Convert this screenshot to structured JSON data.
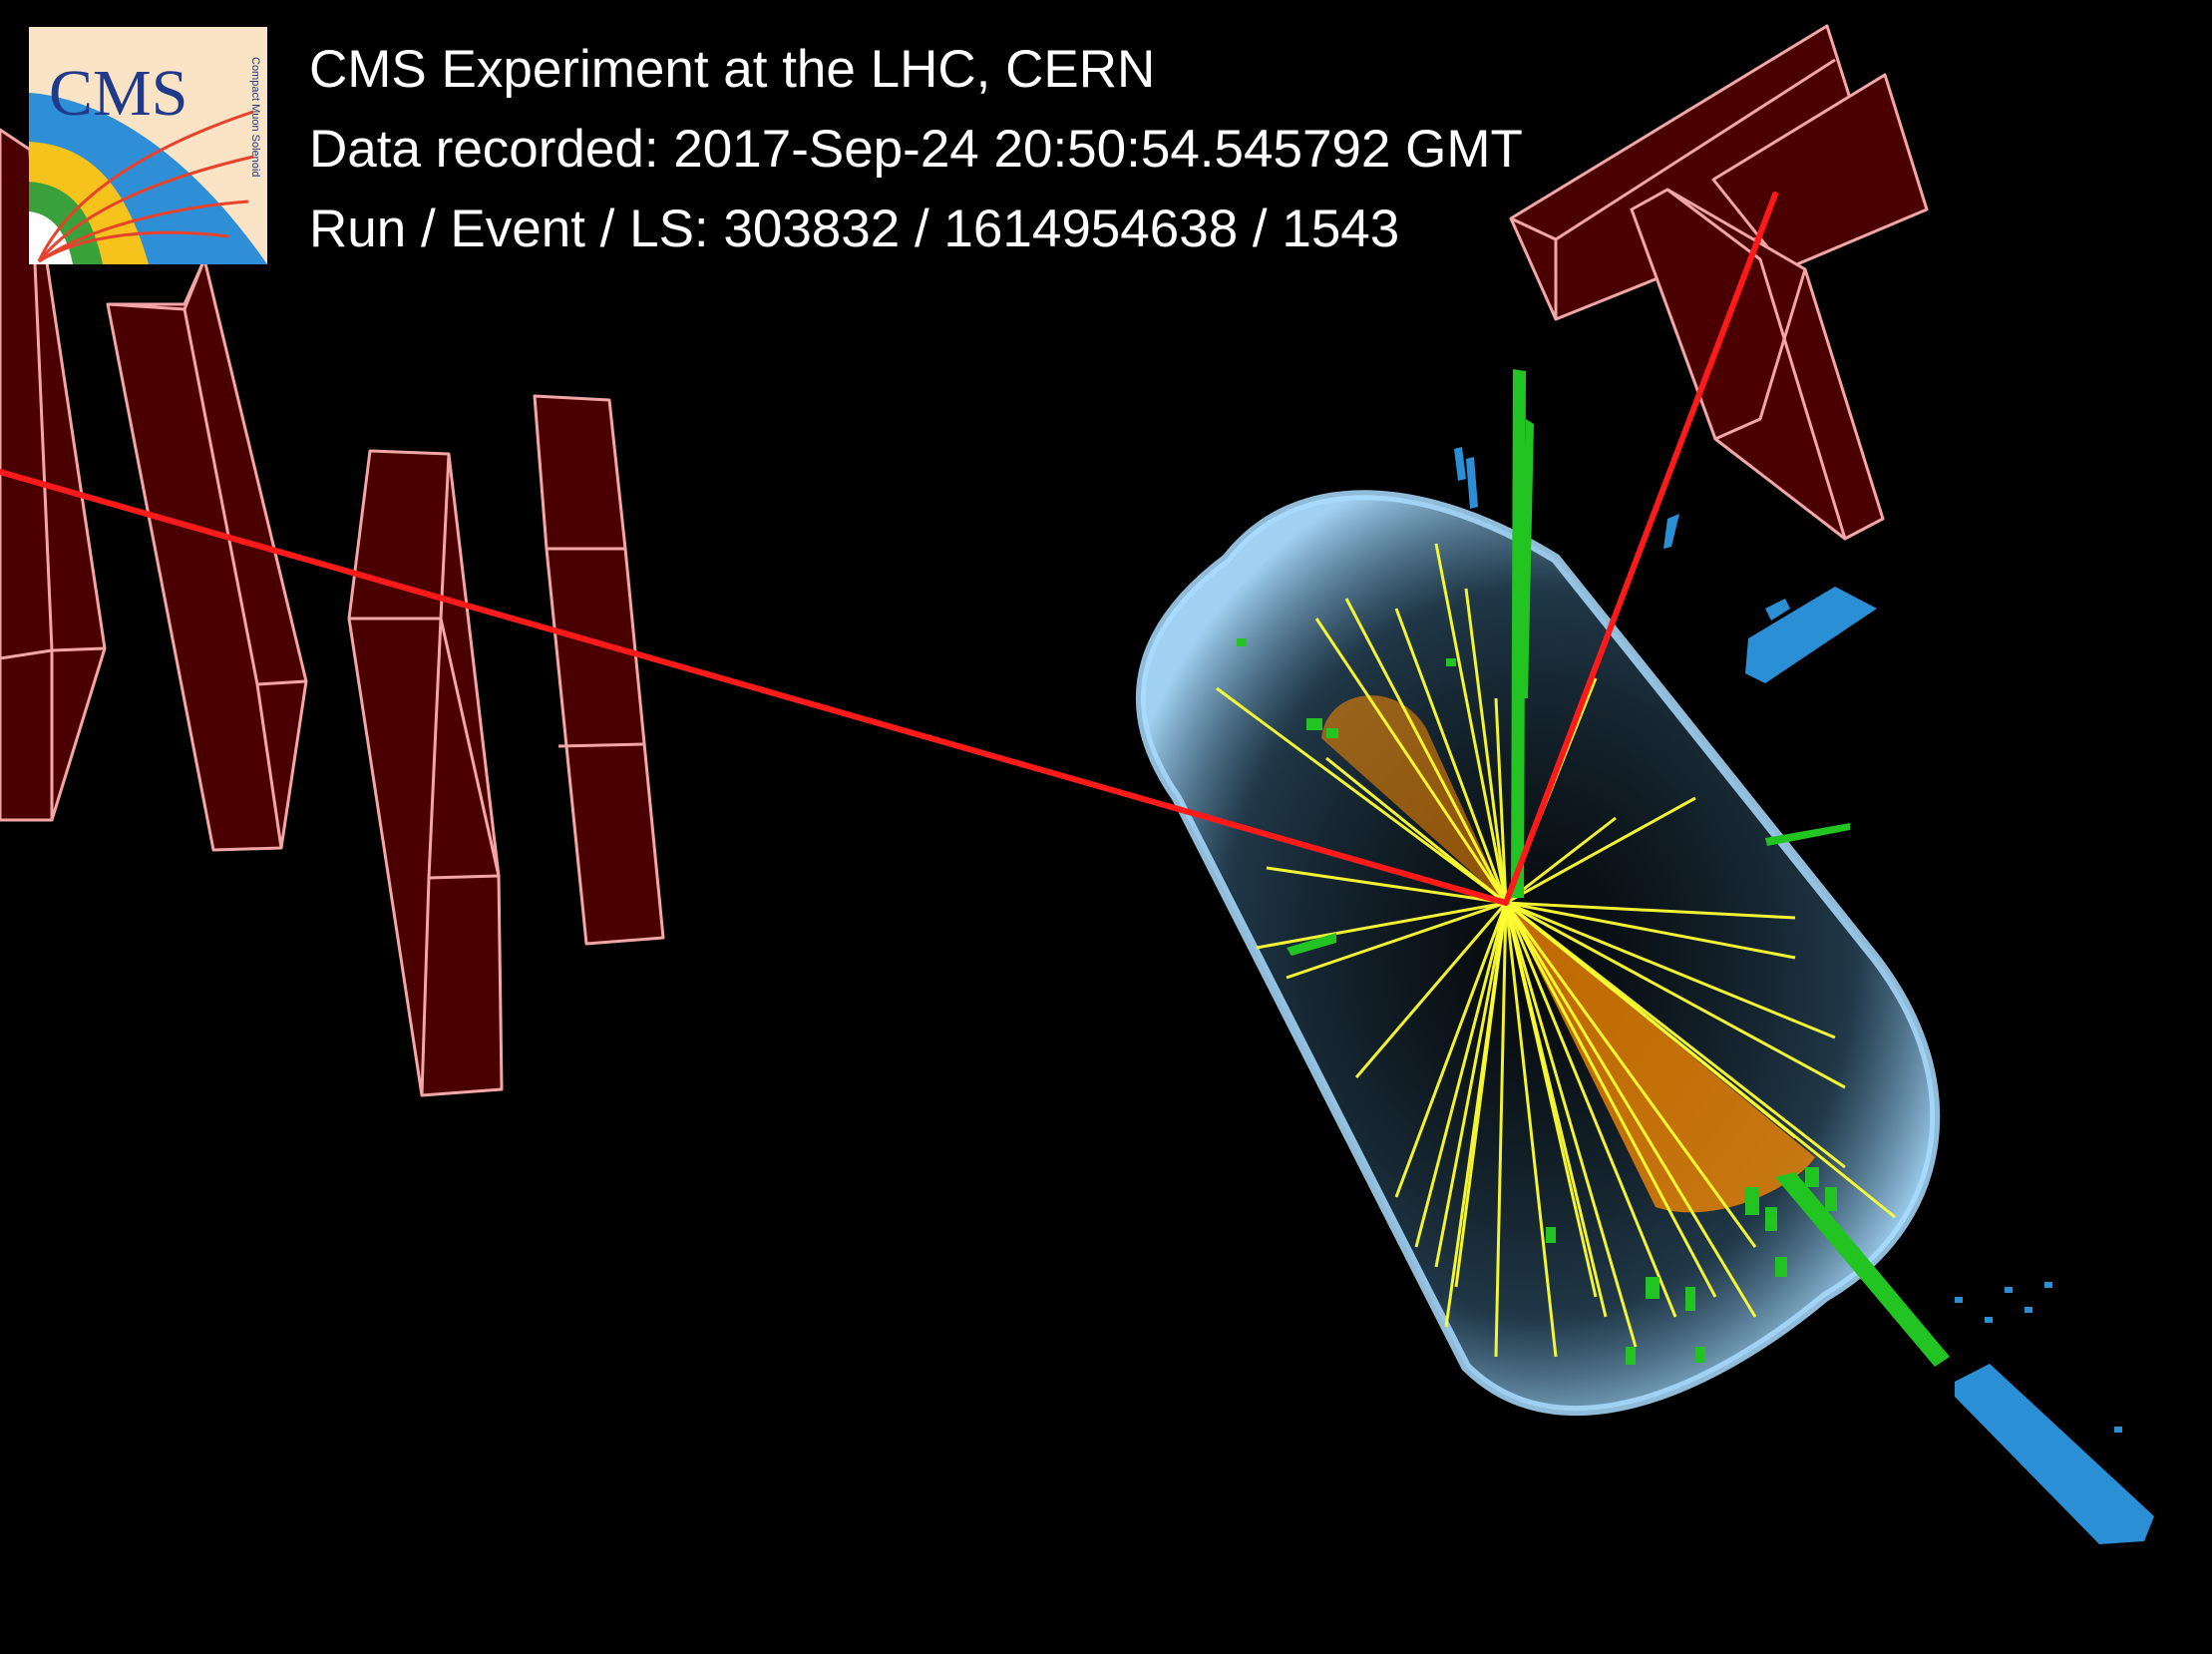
{
  "header": {
    "experiment": "CMS Experiment at the LHC, CERN",
    "recorded": "Data recorded: 2017-Sep-24 20:50:54.545792 GMT",
    "run_event": "Run / Event / LS: 303832 / 1614954638 / 1543"
  },
  "logo": {
    "text": "CMS",
    "subtitle": "Compact Muon Solenoid"
  },
  "colors": {
    "background": "#000000",
    "muon_chamber_fill": "#4a0000",
    "muon_chamber_edge": "#f2a6a6",
    "muon_track": "#ff1a1a",
    "tracker": "#8fd0f5",
    "tracks": "#ffff33",
    "jets": "#ff8c00",
    "ecal": "#22c422",
    "hcal": "#2b8fd6"
  }
}
